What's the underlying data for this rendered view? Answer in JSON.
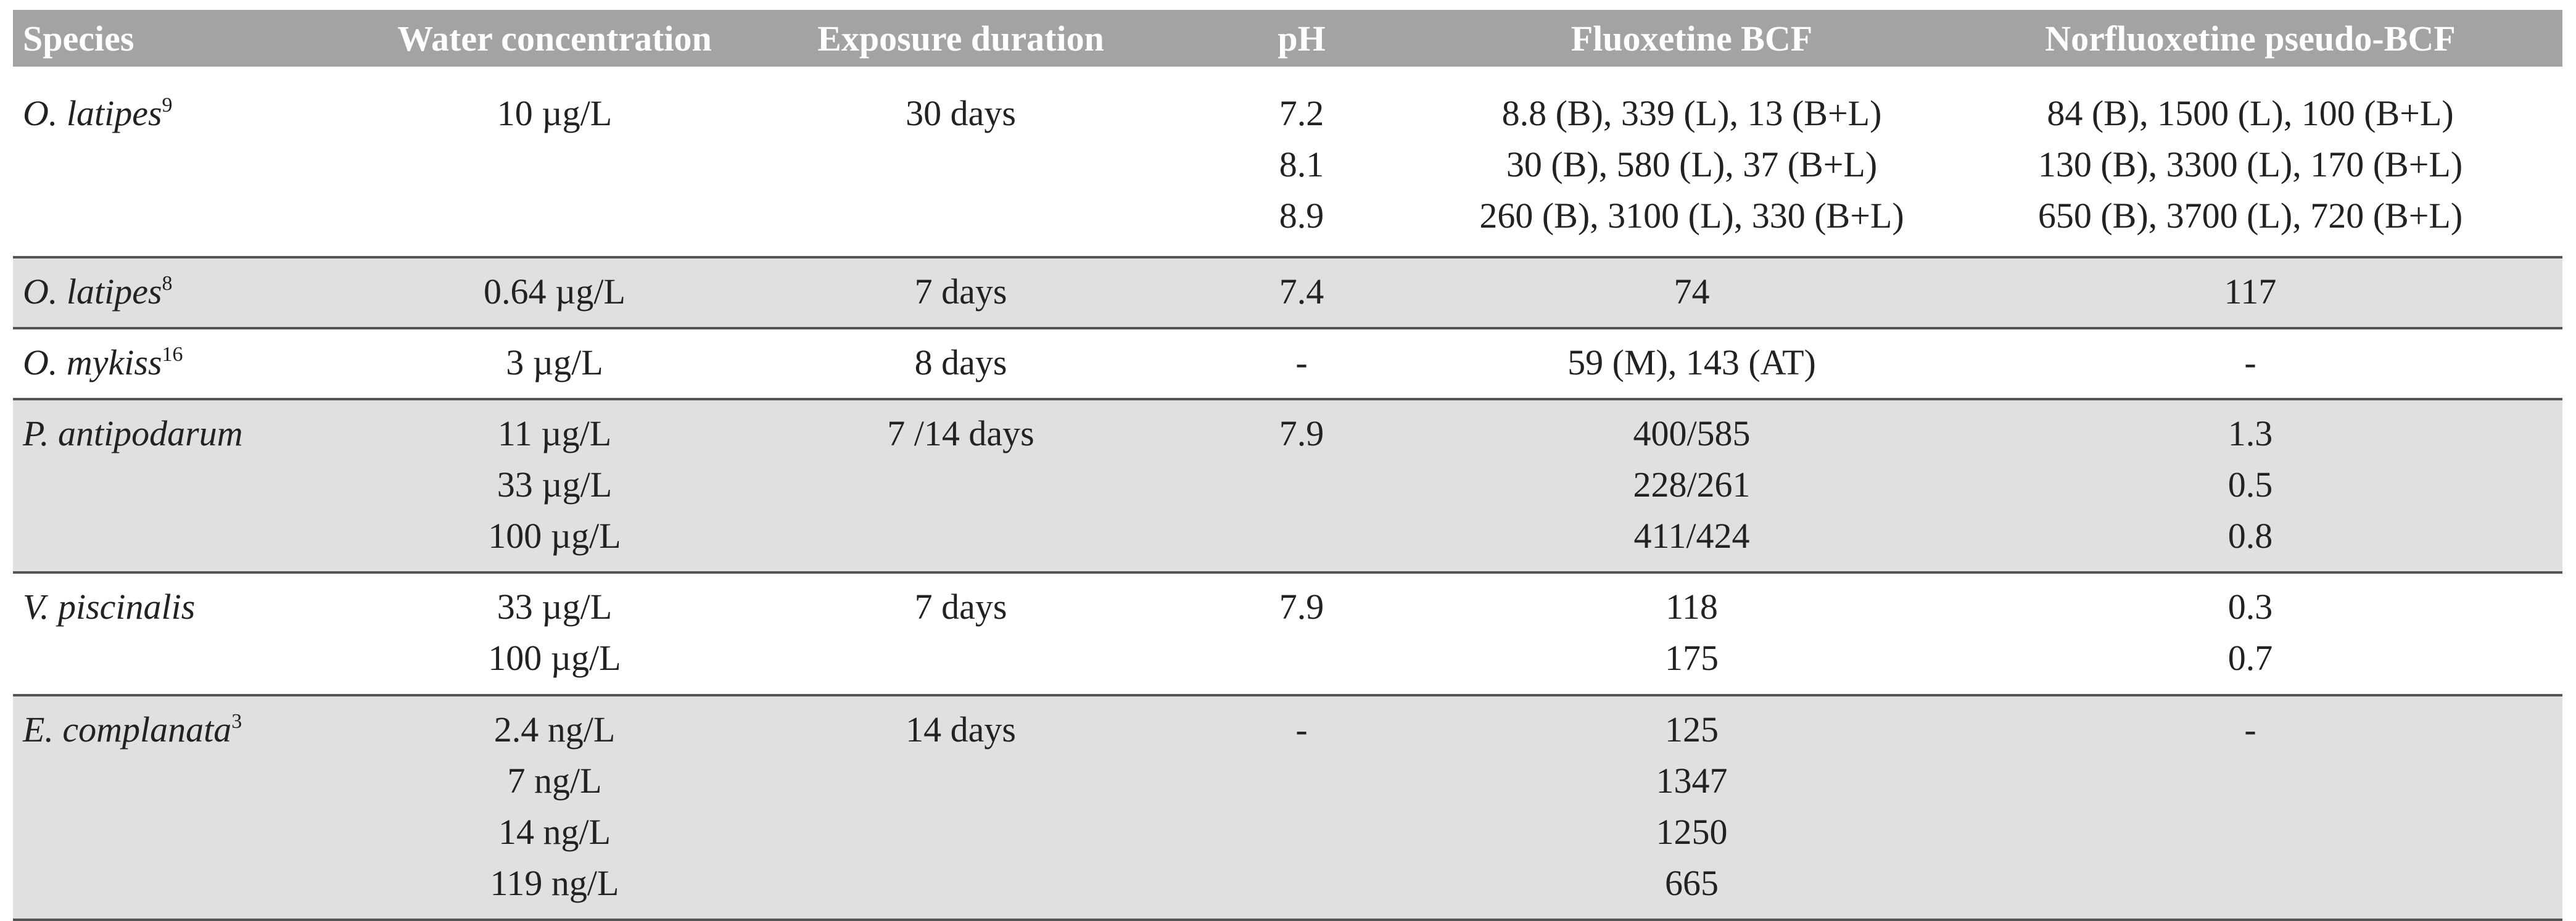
{
  "table": {
    "columns": [
      "Species",
      "Water concentration",
      "Exposure duration",
      "pH",
      "Fluoxetine BCF",
      "Norfluoxetine pseudo-BCF"
    ],
    "rows": [
      {
        "species": "O. latipes",
        "ref": "9",
        "water": [
          "10 µg/L"
        ],
        "duration": [
          "30 days"
        ],
        "ph": [
          "7.2",
          "8.1",
          "8.9"
        ],
        "fluoxetine": [
          "8.8 (B), 339 (L), 13 (B+L)",
          "30 (B), 580 (L), 37 (B+L)",
          "260 (B), 3100 (L), 330 (B+L)"
        ],
        "norfluoxetine": [
          "84 (B), 1500 (L), 100 (B+L)",
          "130 (B), 3300 (L), 170 (B+L)",
          "650 (B), 3700 (L), 720 (B+L)"
        ]
      },
      {
        "species": "O. latipes",
        "ref": "8",
        "water": [
          "0.64 µg/L"
        ],
        "duration": [
          "7 days"
        ],
        "ph": [
          "7.4"
        ],
        "fluoxetine": [
          "74"
        ],
        "norfluoxetine": [
          "117"
        ]
      },
      {
        "species": "O. mykiss",
        "ref": "16",
        "water": [
          "3 µg/L"
        ],
        "duration": [
          "8 days"
        ],
        "ph": [
          "-"
        ],
        "fluoxetine": [
          "59 (M), 143 (AT)"
        ],
        "norfluoxetine": [
          "-"
        ]
      },
      {
        "species": "P. antipodarum",
        "water": [
          "11 µg/L",
          "33 µg/L",
          "100 µg/L"
        ],
        "duration": [
          "7 /14 days"
        ],
        "ph": [
          "7.9"
        ],
        "fluoxetine": [
          "400/585",
          "228/261",
          "411/424"
        ],
        "norfluoxetine": [
          "1.3",
          "0.5",
          "0.8"
        ]
      },
      {
        "species": "V. piscinalis",
        "water": [
          "33 µg/L",
          "100 µg/L"
        ],
        "duration": [
          "7 days"
        ],
        "ph": [
          "7.9"
        ],
        "fluoxetine": [
          "118",
          "175"
        ],
        "norfluoxetine": [
          "0.3",
          "0.7"
        ]
      },
      {
        "species": "E. complanata",
        "ref": "3",
        "water": [
          "2.4 ng/L",
          "7 ng/L",
          "14 ng/L",
          "119 ng/L"
        ],
        "duration": [
          "14 days"
        ],
        "ph": [
          "-"
        ],
        "fluoxetine": [
          "125",
          "1347",
          "1250",
          "665"
        ],
        "norfluoxetine": [
          "-"
        ]
      }
    ]
  }
}
